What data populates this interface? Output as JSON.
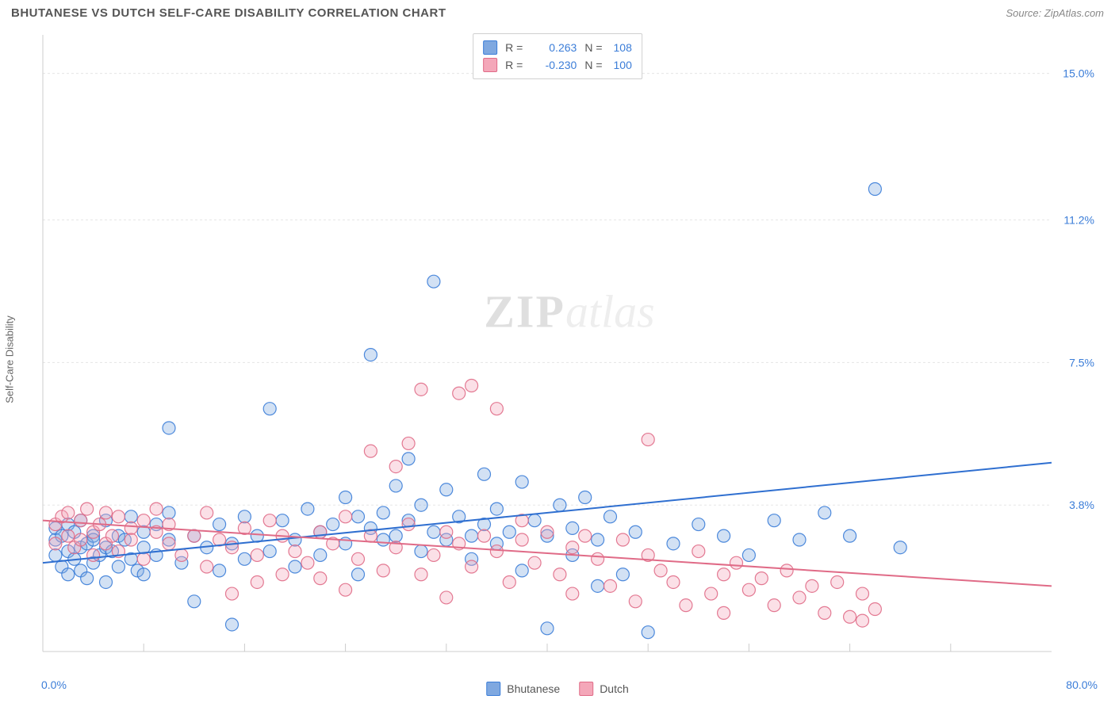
{
  "header": {
    "title": "BHUTANESE VS DUTCH SELF-CARE DISABILITY CORRELATION CHART",
    "source": "Source: ZipAtlas.com"
  },
  "watermark": {
    "bold": "ZIP",
    "light": "atlas"
  },
  "chart": {
    "type": "scatter",
    "ylabel": "Self-Care Disability",
    "xlim": [
      0,
      80
    ],
    "ylim": [
      0,
      16
    ],
    "x_axis_min_label": "0.0%",
    "x_axis_max_label": "80.0%",
    "y_ticks": [
      {
        "value": 3.8,
        "label": "3.8%"
      },
      {
        "value": 7.5,
        "label": "7.5%"
      },
      {
        "value": 11.2,
        "label": "11.2%"
      },
      {
        "value": 15.0,
        "label": "15.0%"
      }
    ],
    "x_ticks_minor": [
      8,
      16,
      24,
      32,
      40,
      48,
      56,
      64,
      72
    ],
    "grid_color": "#e5e5e5",
    "axis_color": "#cccccc",
    "tick_label_color": "#3b7dd8",
    "background_color": "#ffffff",
    "marker_radius": 8,
    "marker_fill_opacity": 0.35,
    "marker_stroke_opacity": 0.9,
    "marker_stroke_width": 1.2,
    "trend_line_width": 2,
    "series": [
      {
        "name": "Bhutanese",
        "color_fill": "#7fa8e0",
        "color_stroke": "#3b7dd8",
        "trend_color": "#2f6fd0",
        "R": "0.263",
        "N": "108",
        "trend": {
          "y_at_x0": 2.3,
          "y_at_x80": 4.9
        },
        "points": [
          [
            1,
            2.5
          ],
          [
            1,
            2.9
          ],
          [
            1,
            3.2
          ],
          [
            1.5,
            2.2
          ],
          [
            1.5,
            3.0
          ],
          [
            2,
            2.6
          ],
          [
            2,
            2.0
          ],
          [
            2,
            3.3
          ],
          [
            2.5,
            2.4
          ],
          [
            2.5,
            3.1
          ],
          [
            3,
            2.7
          ],
          [
            3,
            2.1
          ],
          [
            3,
            3.4
          ],
          [
            3.5,
            1.9
          ],
          [
            3.5,
            2.8
          ],
          [
            4,
            3.0
          ],
          [
            4,
            2.3
          ],
          [
            4,
            2.9
          ],
          [
            4.5,
            2.5
          ],
          [
            5,
            3.4
          ],
          [
            5,
            2.7
          ],
          [
            5,
            1.8
          ],
          [
            5.5,
            2.6
          ],
          [
            6,
            3.0
          ],
          [
            6,
            2.2
          ],
          [
            6.5,
            2.9
          ],
          [
            7,
            3.5
          ],
          [
            7,
            2.4
          ],
          [
            7.5,
            2.1
          ],
          [
            8,
            3.1
          ],
          [
            8,
            2.7
          ],
          [
            8,
            2.0
          ],
          [
            9,
            3.3
          ],
          [
            9,
            2.5
          ],
          [
            10,
            2.9
          ],
          [
            10,
            3.6
          ],
          [
            10,
            5.8
          ],
          [
            11,
            2.3
          ],
          [
            12,
            1.3
          ],
          [
            12,
            3.0
          ],
          [
            13,
            2.7
          ],
          [
            14,
            3.3
          ],
          [
            14,
            2.1
          ],
          [
            15,
            2.8
          ],
          [
            15,
            0.7
          ],
          [
            16,
            3.5
          ],
          [
            16,
            2.4
          ],
          [
            17,
            3.0
          ],
          [
            18,
            2.6
          ],
          [
            18,
            6.3
          ],
          [
            19,
            3.4
          ],
          [
            20,
            2.9
          ],
          [
            20,
            2.2
          ],
          [
            21,
            3.7
          ],
          [
            22,
            2.5
          ],
          [
            22,
            3.1
          ],
          [
            23,
            3.3
          ],
          [
            24,
            2.8
          ],
          [
            24,
            4.0
          ],
          [
            25,
            3.5
          ],
          [
            25,
            2.0
          ],
          [
            26,
            3.2
          ],
          [
            26,
            7.7
          ],
          [
            27,
            2.9
          ],
          [
            27,
            3.6
          ],
          [
            28,
            4.3
          ],
          [
            28,
            3.0
          ],
          [
            29,
            3.4
          ],
          [
            29,
            5.0
          ],
          [
            30,
            2.6
          ],
          [
            30,
            3.8
          ],
          [
            31,
            3.1
          ],
          [
            31,
            9.6
          ],
          [
            32,
            2.9
          ],
          [
            32,
            4.2
          ],
          [
            33,
            3.5
          ],
          [
            34,
            3.0
          ],
          [
            34,
            2.4
          ],
          [
            35,
            4.6
          ],
          [
            35,
            3.3
          ],
          [
            36,
            2.8
          ],
          [
            36,
            3.7
          ],
          [
            37,
            3.1
          ],
          [
            38,
            2.1
          ],
          [
            38,
            4.4
          ],
          [
            39,
            3.4
          ],
          [
            40,
            3.0
          ],
          [
            40,
            0.6
          ],
          [
            41,
            3.8
          ],
          [
            42,
            2.5
          ],
          [
            42,
            3.2
          ],
          [
            43,
            4.0
          ],
          [
            44,
            2.9
          ],
          [
            44,
            1.7
          ],
          [
            45,
            3.5
          ],
          [
            46,
            2.0
          ],
          [
            47,
            3.1
          ],
          [
            48,
            0.5
          ],
          [
            50,
            2.8
          ],
          [
            52,
            3.3
          ],
          [
            54,
            3.0
          ],
          [
            56,
            2.5
          ],
          [
            58,
            3.4
          ],
          [
            60,
            2.9
          ],
          [
            62,
            3.6
          ],
          [
            64,
            3.0
          ],
          [
            66,
            12.0
          ],
          [
            68,
            2.7
          ]
        ]
      },
      {
        "name": "Dutch",
        "color_fill": "#f4a7b9",
        "color_stroke": "#e06b87",
        "trend_color": "#e06b87",
        "R": "-0.230",
        "N": "100",
        "trend": {
          "y_at_x0": 3.4,
          "y_at_x80": 1.7
        },
        "points": [
          [
            1,
            3.3
          ],
          [
            1,
            2.8
          ],
          [
            1.5,
            3.5
          ],
          [
            2,
            3.0
          ],
          [
            2,
            3.6
          ],
          [
            2.5,
            2.7
          ],
          [
            3,
            3.4
          ],
          [
            3,
            2.9
          ],
          [
            3.5,
            3.7
          ],
          [
            4,
            3.1
          ],
          [
            4,
            2.5
          ],
          [
            4.5,
            3.3
          ],
          [
            5,
            3.6
          ],
          [
            5,
            2.8
          ],
          [
            5.5,
            3.0
          ],
          [
            6,
            3.5
          ],
          [
            6,
            2.6
          ],
          [
            7,
            3.2
          ],
          [
            7,
            2.9
          ],
          [
            8,
            3.4
          ],
          [
            8,
            2.4
          ],
          [
            9,
            3.1
          ],
          [
            9,
            3.7
          ],
          [
            10,
            2.8
          ],
          [
            10,
            3.3
          ],
          [
            11,
            2.5
          ],
          [
            12,
            3.0
          ],
          [
            13,
            3.6
          ],
          [
            13,
            2.2
          ],
          [
            14,
            2.9
          ],
          [
            15,
            2.7
          ],
          [
            15,
            1.5
          ],
          [
            16,
            3.2
          ],
          [
            17,
            2.5
          ],
          [
            17,
            1.8
          ],
          [
            18,
            3.4
          ],
          [
            19,
            2.0
          ],
          [
            19,
            3.0
          ],
          [
            20,
            2.6
          ],
          [
            21,
            2.3
          ],
          [
            22,
            1.9
          ],
          [
            22,
            3.1
          ],
          [
            23,
            2.8
          ],
          [
            24,
            3.5
          ],
          [
            24,
            1.6
          ],
          [
            25,
            2.4
          ],
          [
            26,
            3.0
          ],
          [
            26,
            5.2
          ],
          [
            27,
            2.1
          ],
          [
            28,
            2.7
          ],
          [
            28,
            4.8
          ],
          [
            29,
            3.3
          ],
          [
            29,
            5.4
          ],
          [
            30,
            2.0
          ],
          [
            30,
            6.8
          ],
          [
            31,
            2.5
          ],
          [
            32,
            3.1
          ],
          [
            32,
            1.4
          ],
          [
            33,
            6.7
          ],
          [
            33,
            2.8
          ],
          [
            34,
            2.2
          ],
          [
            34,
            6.9
          ],
          [
            35,
            3.0
          ],
          [
            36,
            6.3
          ],
          [
            36,
            2.6
          ],
          [
            37,
            1.8
          ],
          [
            38,
            2.9
          ],
          [
            38,
            3.4
          ],
          [
            39,
            2.3
          ],
          [
            40,
            3.1
          ],
          [
            41,
            2.0
          ],
          [
            42,
            1.5
          ],
          [
            42,
            2.7
          ],
          [
            43,
            3.0
          ],
          [
            44,
            2.4
          ],
          [
            45,
            1.7
          ],
          [
            46,
            2.9
          ],
          [
            47,
            1.3
          ],
          [
            48,
            2.5
          ],
          [
            48,
            5.5
          ],
          [
            49,
            2.1
          ],
          [
            50,
            1.8
          ],
          [
            51,
            1.2
          ],
          [
            52,
            2.6
          ],
          [
            53,
            1.5
          ],
          [
            54,
            2.0
          ],
          [
            54,
            1.0
          ],
          [
            55,
            2.3
          ],
          [
            56,
            1.6
          ],
          [
            57,
            1.9
          ],
          [
            58,
            1.2
          ],
          [
            59,
            2.1
          ],
          [
            60,
            1.4
          ],
          [
            61,
            1.7
          ],
          [
            62,
            1.0
          ],
          [
            63,
            1.8
          ],
          [
            64,
            0.9
          ],
          [
            65,
            1.5
          ],
          [
            66,
            1.1
          ],
          [
            65,
            0.8
          ]
        ]
      }
    ]
  },
  "legend_top": {
    "r_label": "R =",
    "n_label": "N ="
  },
  "legend_bottom": {
    "items": [
      {
        "label": "Bhutanese",
        "fill": "#7fa8e0",
        "stroke": "#3b7dd8"
      },
      {
        "label": "Dutch",
        "fill": "#f4a7b9",
        "stroke": "#e06b87"
      }
    ]
  }
}
